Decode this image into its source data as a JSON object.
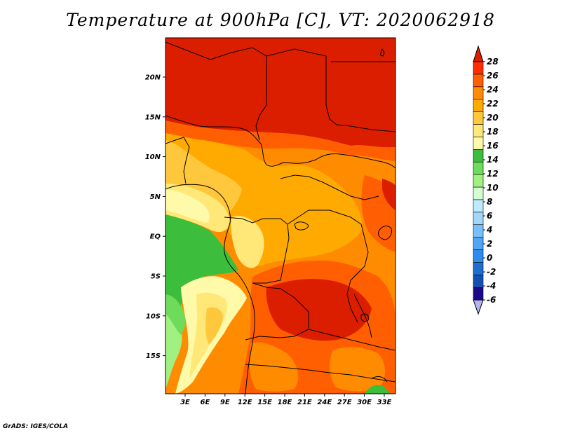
{
  "title": "Temperature at 900hPa [C], VT: 2020062918",
  "footer": "GrADS: IGES/COLA",
  "map": {
    "lat_labels": [
      "20N",
      "15N",
      "10N",
      "5N",
      "EQ",
      "5S",
      "10S",
      "15S"
    ],
    "lon_labels": [
      "3E",
      "6E",
      "9E",
      "12E",
      "15E",
      "18E",
      "21E",
      "24E",
      "27E",
      "30E",
      "33E"
    ]
  },
  "colorbar": {
    "labels": [
      "28",
      "26",
      "24",
      "22",
      "20",
      "18",
      "16",
      "14",
      "12",
      "10",
      "8",
      "6",
      "4",
      "2",
      "0",
      "-2",
      "-4",
      "-6"
    ],
    "colors": [
      "#b4b4f0",
      "#1a0a8a",
      "#1450b4",
      "#1e6ed2",
      "#2d8cec",
      "#50a5f5",
      "#78c0fa",
      "#a0d8fa",
      "#bfe9ff",
      "#d2ffd2",
      "#a0f082",
      "#6edc5a",
      "#3cbe3c",
      "#fffaaa",
      "#ffe878",
      "#ffc83c",
      "#ffaa00",
      "#ff8c00",
      "#ff5f00",
      "#ff2d00",
      "#dc1e00"
    ]
  }
}
